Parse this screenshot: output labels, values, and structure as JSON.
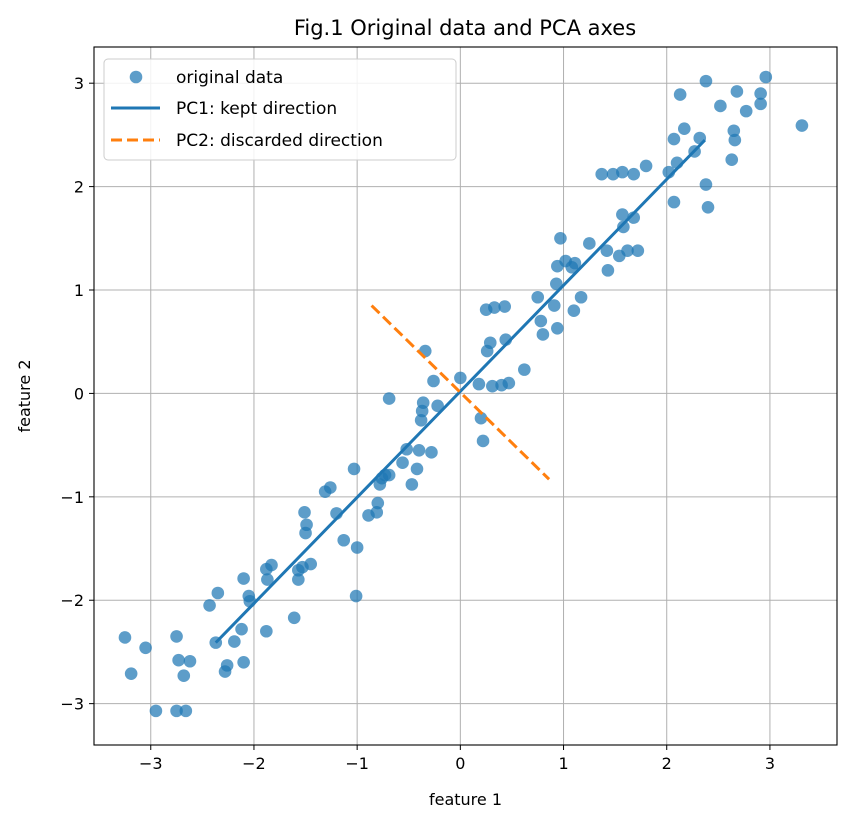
{
  "chart_data": {
    "type": "scatter",
    "title": "Fig.1 Original data and PCA axes",
    "xlabel": "feature 1",
    "ylabel": "feature 2",
    "xlim": [
      -3.55,
      3.65
    ],
    "ylim": [
      -3.4,
      3.35
    ],
    "xticks": [
      -3,
      -2,
      -1,
      0,
      1,
      2,
      3
    ],
    "yticks": [
      -3,
      -2,
      -1,
      0,
      1,
      2,
      3
    ],
    "xtick_labels": [
      "−3",
      "−2",
      "−1",
      "0",
      "1",
      "2",
      "3"
    ],
    "ytick_labels": [
      "−3",
      "−2",
      "−1",
      "0",
      "1",
      "2",
      "3"
    ],
    "grid": true,
    "legend_position": "top-left",
    "colors": {
      "points": "#1f77b4",
      "pc1": "#1f77b4",
      "pc2": "#ff7f0e"
    },
    "scatter": {
      "name": "original data",
      "points": [
        [
          -3.25,
          -2.36
        ],
        [
          -3.19,
          -2.71
        ],
        [
          -3.05,
          -2.46
        ],
        [
          -2.95,
          -3.07
        ],
        [
          -2.75,
          -2.35
        ],
        [
          -2.73,
          -2.58
        ],
        [
          -2.75,
          -3.07
        ],
        [
          -2.68,
          -2.73
        ],
        [
          -2.66,
          -3.07
        ],
        [
          -2.62,
          -2.59
        ],
        [
          -2.43,
          -2.05
        ],
        [
          -2.37,
          -2.41
        ],
        [
          -2.35,
          -1.93
        ],
        [
          -2.28,
          -2.69
        ],
        [
          -2.26,
          -2.63
        ],
        [
          -2.19,
          -2.4
        ],
        [
          -2.12,
          -2.28
        ],
        [
          -2.1,
          -1.79
        ],
        [
          -2.1,
          -2.6
        ],
        [
          -2.05,
          -1.96
        ],
        [
          -2.04,
          -2.01
        ],
        [
          -1.88,
          -2.3
        ],
        [
          -1.88,
          -1.7
        ],
        [
          -1.87,
          -1.8
        ],
        [
          -1.83,
          -1.66
        ],
        [
          -1.61,
          -2.17
        ],
        [
          -1.57,
          -1.71
        ],
        [
          -1.57,
          -1.8
        ],
        [
          -1.53,
          -1.68
        ],
        [
          -1.5,
          -1.35
        ],
        [
          -1.49,
          -1.27
        ],
        [
          -1.51,
          -1.15
        ],
        [
          -1.45,
          -1.65
        ],
        [
          -1.31,
          -0.95
        ],
        [
          -1.26,
          -0.91
        ],
        [
          -1.2,
          -1.16
        ],
        [
          -1.13,
          -1.42
        ],
        [
          -1.03,
          -0.73
        ],
        [
          -1.0,
          -1.49
        ],
        [
          -1.01,
          -1.96
        ],
        [
          -0.89,
          -1.18
        ],
        [
          -0.81,
          -1.15
        ],
        [
          -0.8,
          -1.06
        ],
        [
          -0.78,
          -0.88
        ],
        [
          -0.76,
          -0.82
        ],
        [
          -0.73,
          -0.79
        ],
        [
          -0.69,
          -0.79
        ],
        [
          -0.69,
          -0.05
        ],
        [
          -0.56,
          -0.67
        ],
        [
          -0.52,
          -0.54
        ],
        [
          -0.47,
          -0.88
        ],
        [
          -0.42,
          -0.73
        ],
        [
          -0.4,
          -0.55
        ],
        [
          -0.38,
          -0.26
        ],
        [
          -0.37,
          -0.17
        ],
        [
          -0.36,
          -0.09
        ],
        [
          -0.34,
          0.41
        ],
        [
          -0.28,
          -0.57
        ],
        [
          -0.26,
          0.12
        ],
        [
          -0.22,
          -0.12
        ],
        [
          0.0,
          0.15
        ],
        [
          0.18,
          0.09
        ],
        [
          0.2,
          -0.24
        ],
        [
          0.22,
          -0.46
        ],
        [
          0.25,
          0.81
        ],
        [
          0.26,
          0.41
        ],
        [
          0.29,
          0.49
        ],
        [
          0.31,
          0.07
        ],
        [
          0.33,
          0.83
        ],
        [
          0.4,
          0.08
        ],
        [
          0.43,
          0.84
        ],
        [
          0.44,
          0.52
        ],
        [
          0.47,
          0.1
        ],
        [
          0.62,
          0.23
        ],
        [
          0.75,
          0.93
        ],
        [
          0.78,
          0.7
        ],
        [
          0.8,
          0.57
        ],
        [
          0.91,
          0.85
        ],
        [
          0.93,
          1.06
        ],
        [
          0.94,
          1.23
        ],
        [
          0.94,
          0.63
        ],
        [
          0.97,
          1.5
        ],
        [
          1.02,
          1.28
        ],
        [
          1.08,
          1.22
        ],
        [
          1.1,
          0.8
        ],
        [
          1.11,
          1.26
        ],
        [
          1.17,
          0.93
        ],
        [
          1.25,
          1.45
        ],
        [
          1.37,
          2.12
        ],
        [
          1.43,
          1.19
        ],
        [
          1.42,
          1.38
        ],
        [
          1.48,
          2.12
        ],
        [
          1.54,
          1.33
        ],
        [
          1.57,
          2.14
        ],
        [
          1.57,
          1.73
        ],
        [
          1.58,
          1.61
        ],
        [
          1.62,
          1.38
        ],
        [
          1.68,
          2.12
        ],
        [
          1.68,
          1.7
        ],
        [
          1.72,
          1.38
        ],
        [
          1.8,
          2.2
        ],
        [
          2.02,
          2.14
        ],
        [
          2.07,
          2.46
        ],
        [
          2.07,
          1.85
        ],
        [
          2.1,
          2.23
        ],
        [
          2.13,
          2.89
        ],
        [
          2.17,
          2.56
        ],
        [
          2.27,
          2.34
        ],
        [
          2.32,
          2.47
        ],
        [
          2.38,
          3.02
        ],
        [
          2.38,
          2.02
        ],
        [
          2.4,
          1.8
        ],
        [
          2.52,
          2.78
        ],
        [
          2.63,
          2.26
        ],
        [
          2.65,
          2.54
        ],
        [
          2.66,
          2.45
        ],
        [
          2.68,
          2.92
        ],
        [
          2.77,
          2.73
        ],
        [
          2.91,
          2.8
        ],
        [
          2.91,
          2.9
        ],
        [
          2.96,
          3.06
        ],
        [
          3.31,
          2.59
        ]
      ]
    },
    "lines": [
      {
        "name": "PC1: kept direction",
        "style": "solid",
        "x": [
          -2.37,
          2.37
        ],
        "y": [
          -2.41,
          2.45
        ]
      },
      {
        "name": "PC2: discarded direction",
        "style": "dashed",
        "x": [
          -0.86,
          0.86
        ],
        "y": [
          0.85,
          -0.83
        ]
      }
    ]
  }
}
